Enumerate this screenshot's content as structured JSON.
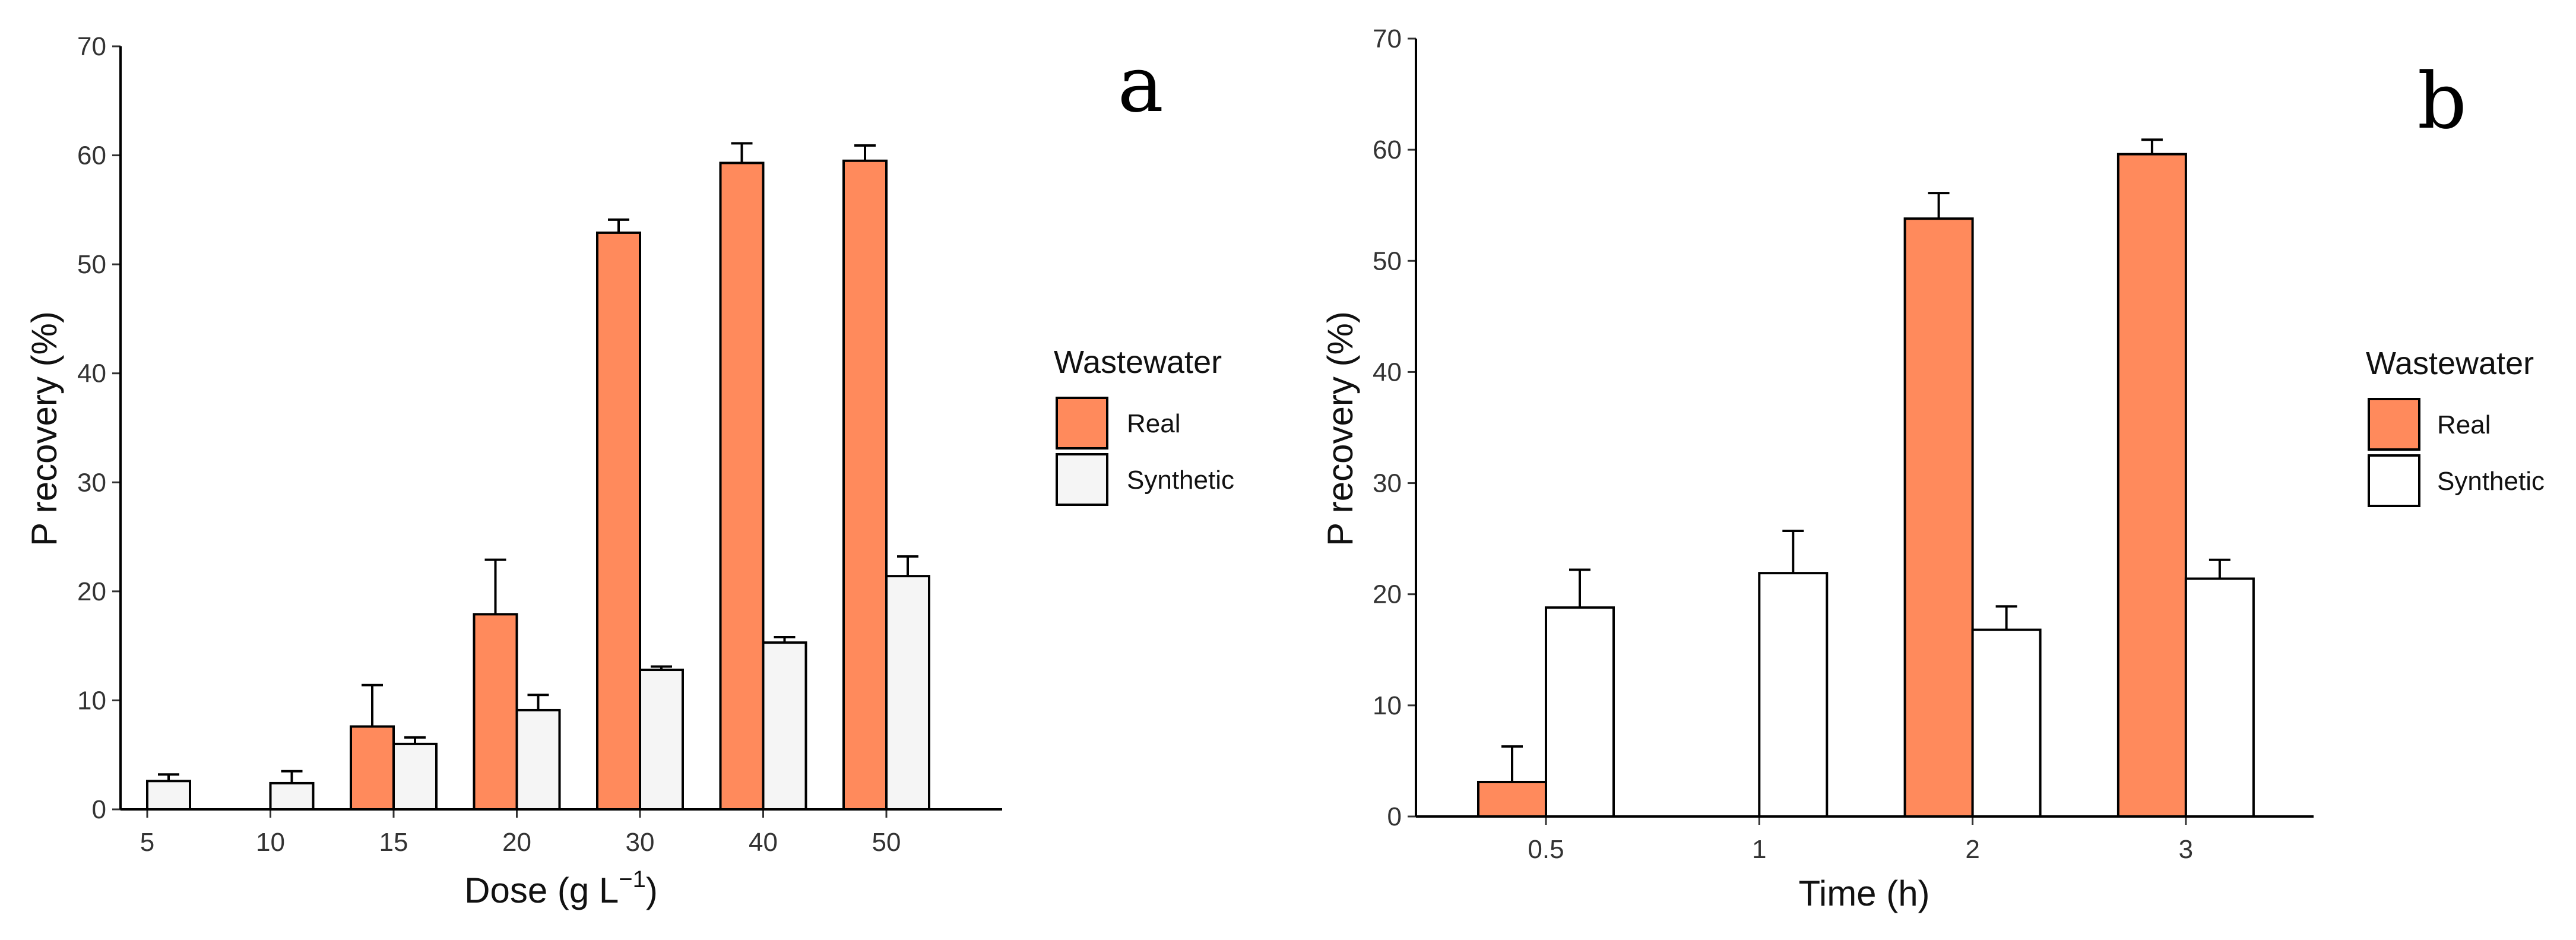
{
  "colors": {
    "real": "#FF8A5C",
    "synthetic_a": "#F5F5F5",
    "synthetic_b": "#FFFFFF"
  },
  "legend": {
    "title": "Wastewater",
    "items": [
      "Real",
      "Synthetic"
    ]
  },
  "chart_data": [
    {
      "type": "bar",
      "panel_label": "a",
      "xlabel": "Dose (g L",
      "xlabel_sup": "−1",
      "xlabel_close": ")",
      "ylabel": "P recovery (%)",
      "ylim": [
        0,
        70
      ],
      "yticks": [
        0,
        10,
        20,
        30,
        40,
        50,
        60,
        70
      ],
      "categories": [
        "5",
        "10",
        "15",
        "20",
        "30",
        "40",
        "50"
      ],
      "series": [
        {
          "name": "Real",
          "values": [
            null,
            null,
            7.6,
            17.9,
            52.9,
            59.3,
            59.5
          ],
          "errors": [
            null,
            null,
            3.8,
            5.0,
            1.2,
            1.8,
            1.4
          ]
        },
        {
          "name": "Synthetic",
          "values": [
            2.6,
            2.4,
            6.0,
            9.1,
            12.8,
            15.3,
            21.4
          ],
          "errors": [
            0.6,
            1.1,
            0.6,
            1.4,
            0.3,
            0.5,
            1.8
          ]
        }
      ]
    },
    {
      "type": "bar",
      "panel_label": "b",
      "xlabel": "Time (h)",
      "ylabel": "P recovery (%)",
      "ylim": [
        0,
        70
      ],
      "yticks": [
        0,
        10,
        20,
        30,
        40,
        50,
        60,
        70
      ],
      "categories": [
        "0.5",
        "1",
        "2",
        "3"
      ],
      "series": [
        {
          "name": "Real",
          "values": [
            3.1,
            null,
            53.8,
            59.6
          ],
          "errors": [
            3.2,
            null,
            2.3,
            1.3
          ]
        },
        {
          "name": "Synthetic",
          "values": [
            18.8,
            21.9,
            16.8,
            21.4
          ],
          "errors": [
            3.4,
            3.8,
            2.1,
            1.7
          ]
        }
      ]
    }
  ]
}
